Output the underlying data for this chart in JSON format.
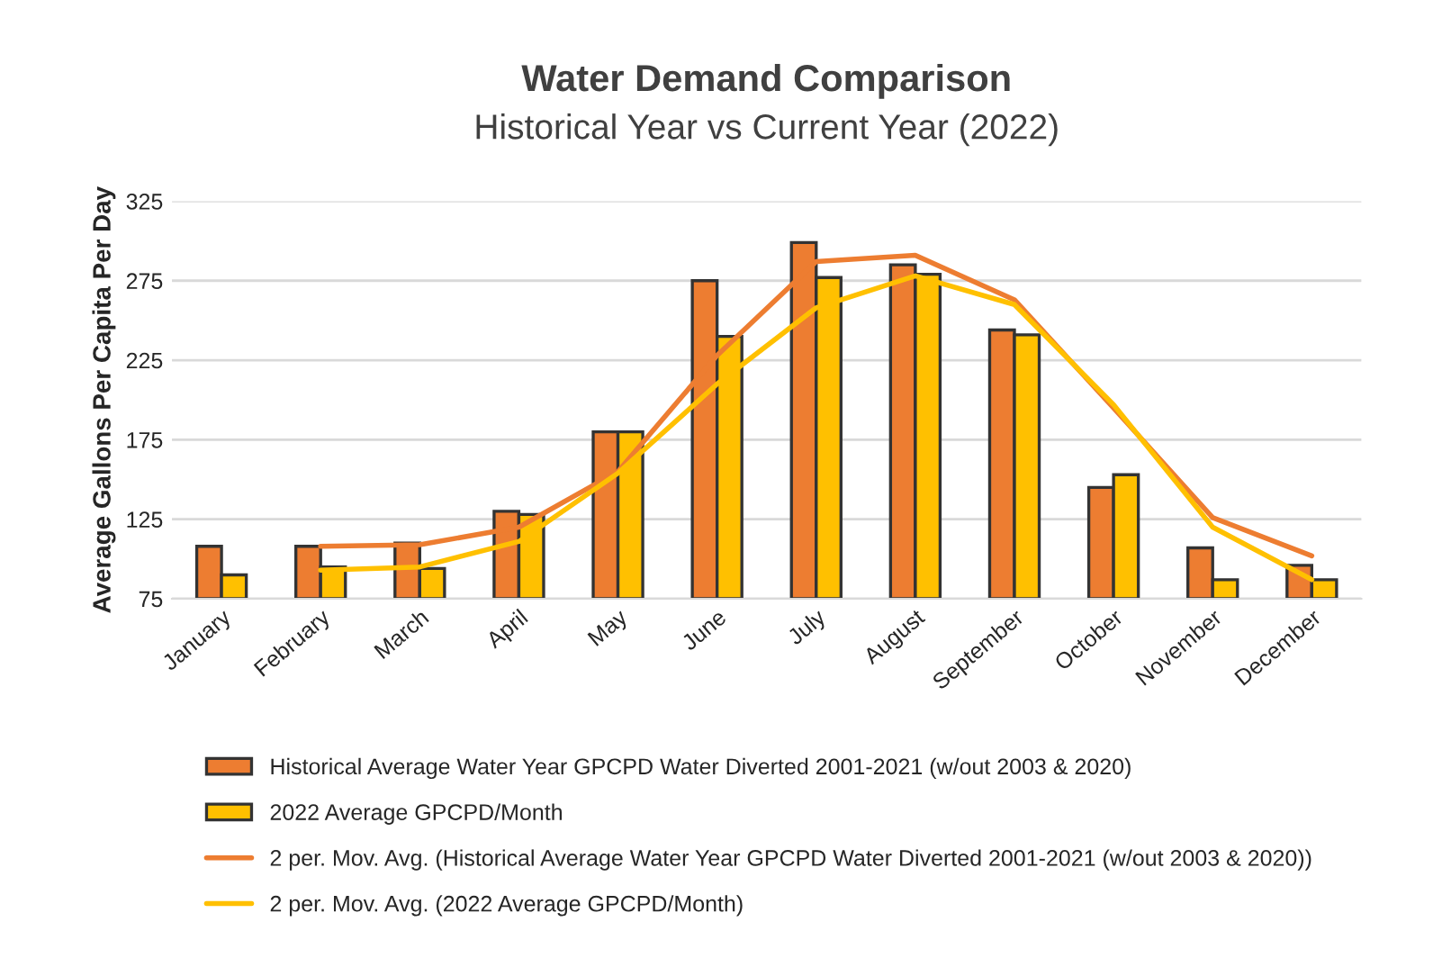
{
  "chart_data": {
    "type": "bar",
    "title": "Water Demand Comparison",
    "subtitle": "Historical Year vs Current Year (2022)",
    "ylabel": "Average Gallons Per Capita Per Day",
    "categories": [
      "January",
      "February",
      "March",
      "April",
      "May",
      "June",
      "July",
      "August",
      "September",
      "October",
      "November",
      "December"
    ],
    "series": [
      {
        "name": "Historical Average Water Year GPCPD Water Diverted 2001-2021 (w/out 2003 & 2020)",
        "color": "#ed7d31",
        "values": [
          108,
          108,
          110,
          130,
          180,
          275,
          299,
          285,
          244,
          145,
          107,
          96
        ]
      },
      {
        "name": "2022 Average GPCPD/Month",
        "color": "#ffc000",
        "values": [
          90,
          95,
          94,
          128,
          180,
          240,
          277,
          279,
          241,
          153,
          87,
          87
        ]
      },
      {
        "name": "2 per. Mov. Avg. (Historical Average Water Year GPCPD Water Diverted 2001-2021 (w/out 2003 & 2020))",
        "type": "line",
        "color": "#ed7d31",
        "values": [
          null,
          108,
          109,
          120,
          155,
          228,
          287,
          291,
          263,
          195,
          126,
          102
        ]
      },
      {
        "name": "2 per. Mov. Avg. (2022 Average GPCPD/Month)",
        "type": "line",
        "color": "#ffc000",
        "values": [
          null,
          93,
          95,
          111,
          154,
          210,
          258,
          278,
          260,
          197,
          120,
          87
        ]
      }
    ],
    "ylim": [
      75,
      325
    ],
    "yticks": [
      75,
      125,
      175,
      225,
      275,
      325
    ],
    "grid": "y",
    "legend": "bottom",
    "line_style": "solid",
    "marker": "none"
  }
}
